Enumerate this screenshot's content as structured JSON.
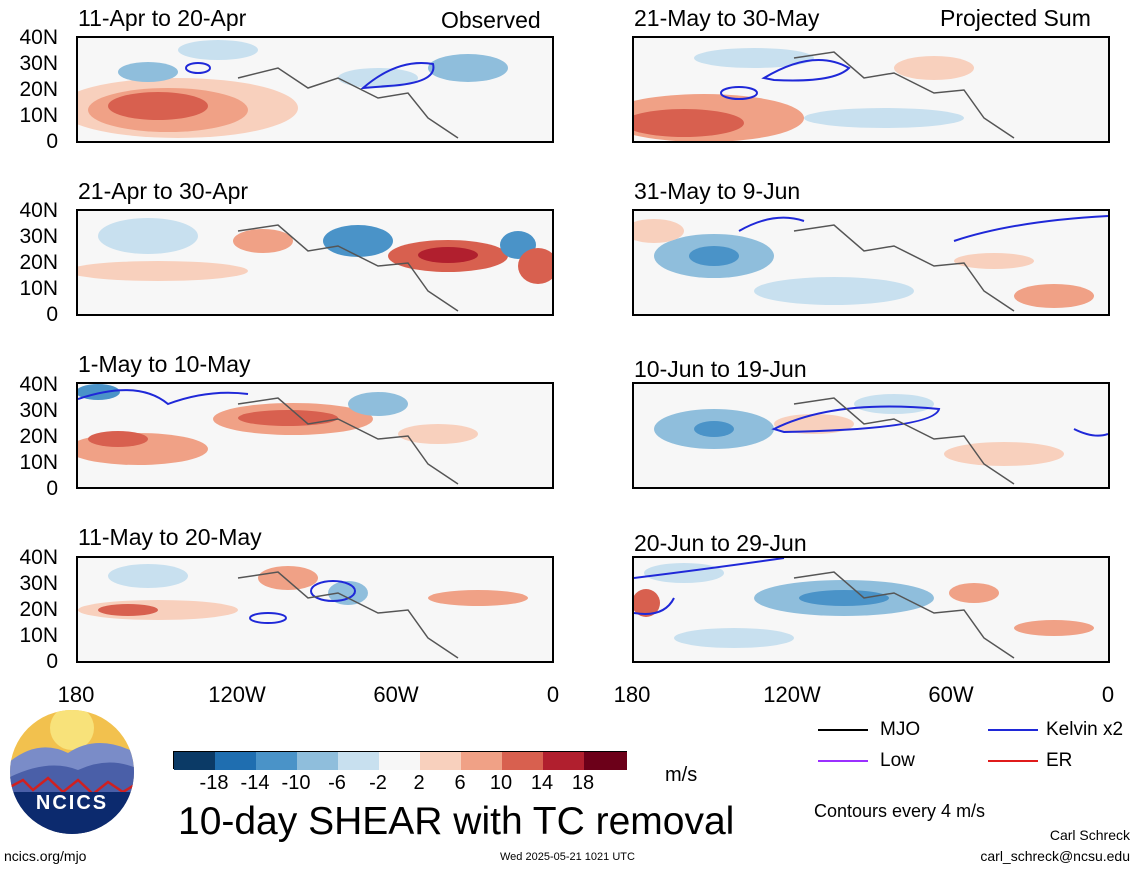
{
  "panels": [
    {
      "id": "p1",
      "title": "11-Apr to 20-Apr",
      "tag": "Observed"
    },
    {
      "id": "p2",
      "title": "21-May to 30-May",
      "tag": "Projected Sum"
    },
    {
      "id": "p3",
      "title": "21-Apr to 30-Apr",
      "tag": ""
    },
    {
      "id": "p4",
      "title": "31-May to 9-Jun",
      "tag": ""
    },
    {
      "id": "p5",
      "title": "1-May to 10-May",
      "tag": ""
    },
    {
      "id": "p6",
      "title": "10-Jun to 19-Jun",
      "tag": ""
    },
    {
      "id": "p7",
      "title": "11-May to 20-May",
      "tag": ""
    },
    {
      "id": "p8",
      "title": "20-Jun to 29-Jun",
      "tag": ""
    }
  ],
  "lat_labels": [
    "40N",
    "30N",
    "20N",
    "10N",
    "0"
  ],
  "lon_labels": [
    "180",
    "120W",
    "60W",
    "0"
  ],
  "colorbar": {
    "unit": "m/s",
    "tick_labels": [
      "-18",
      "-14",
      "-10",
      "-6",
      "-2",
      "2",
      "6",
      "10",
      "14",
      "18"
    ],
    "colors": [
      "#0b3a66",
      "#1f6eb0",
      "#4a93c8",
      "#8fbedc",
      "#c8e0ef",
      "#f7f7f7",
      "#f8d0bd",
      "#f0a186",
      "#d8604f",
      "#b11f2e",
      "#6c0019"
    ]
  },
  "legend": {
    "items": [
      {
        "label": "MJO",
        "color": "#000000"
      },
      {
        "label": "Kelvin x2",
        "color": "#1f28d8"
      },
      {
        "label": "Low",
        "color": "#9b30ff"
      },
      {
        "label": "ER",
        "color": "#e01b1b"
      }
    ],
    "contour_note": "Contours every 4 m/s"
  },
  "main_title": "10-day SHEAR with TC removal",
  "logo_text": "NCICS",
  "footer": {
    "left": "ncics.org/mjo",
    "center": "Wed 2025-05-21 1021 UTC",
    "author": "Carl Schreck",
    "email": "carl_schreck@ncsu.edu"
  }
}
